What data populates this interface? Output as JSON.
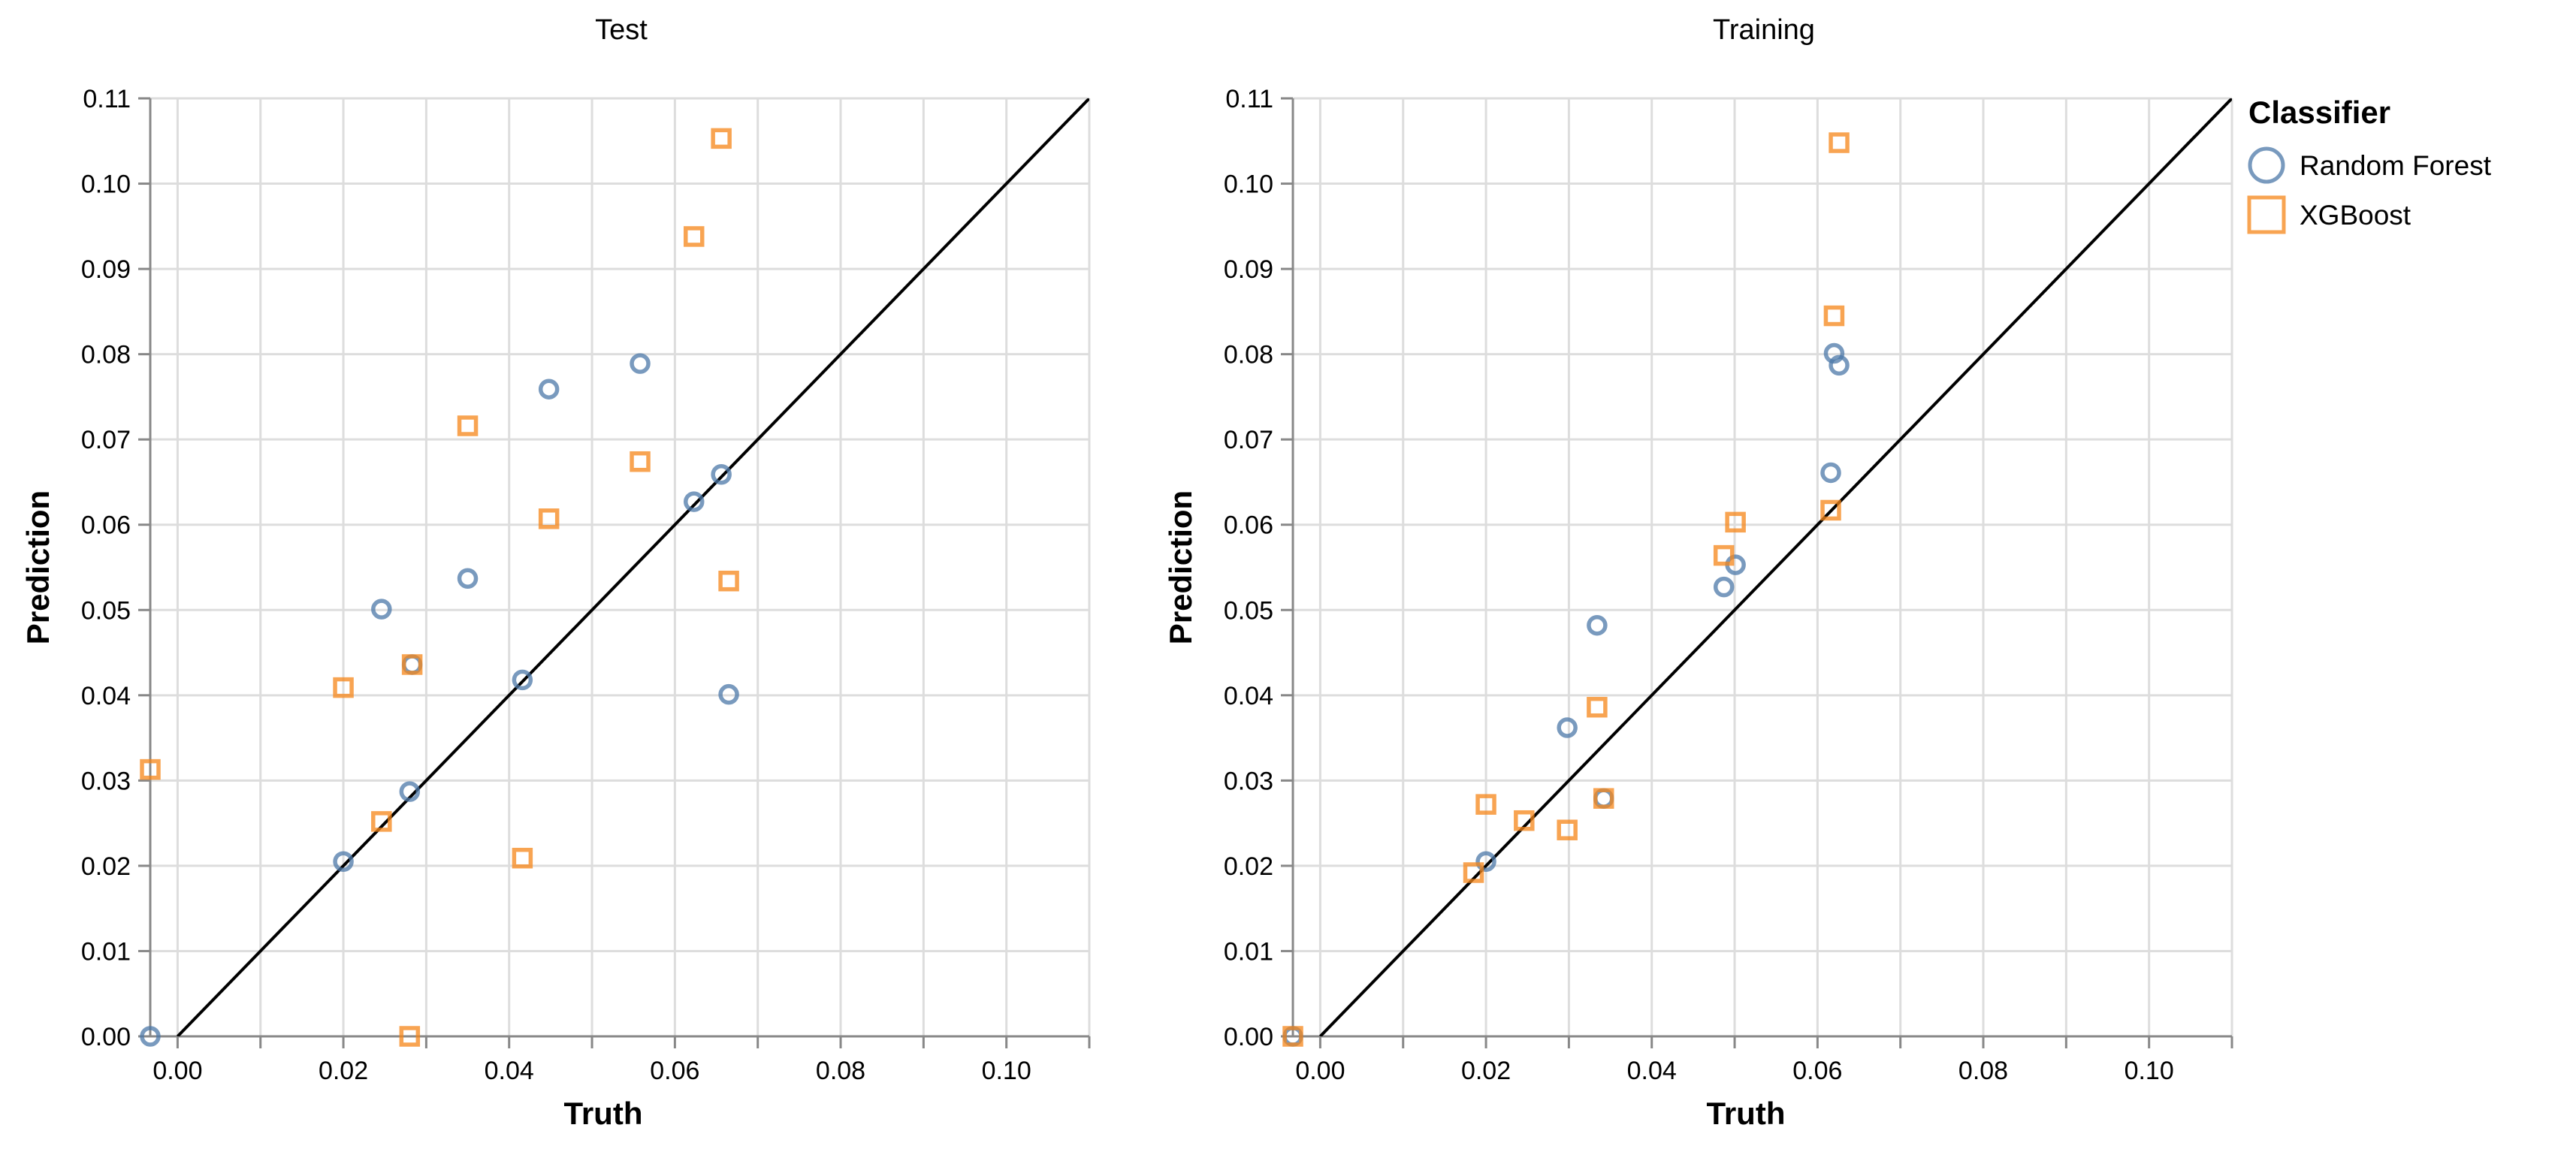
{
  "chart_data": {
    "type": "scatter",
    "legend": {
      "title": "Classifier",
      "placement": "right",
      "entries": [
        {
          "name": "Random Forest",
          "shape": "circle",
          "color": "#4c78a8"
        },
        {
          "name": "XGBoost",
          "shape": "square",
          "color": "#f58518"
        }
      ]
    },
    "panels": [
      {
        "title": "Test",
        "xlabel": "Truth",
        "ylabel": "Prediction",
        "xlim": [
          -0.0033,
          0.11
        ],
        "ylim": [
          0,
          0.11
        ],
        "grid": true,
        "x_ticks": [
          "0.00",
          "0.02",
          "0.04",
          "0.06",
          "0.08",
          "0.10"
        ],
        "y_ticks": [
          "0.00",
          "0.01",
          "0.02",
          "0.03",
          "0.04",
          "0.05",
          "0.06",
          "0.07",
          "0.08",
          "0.09",
          "0.10",
          "0.11"
        ],
        "series": [
          {
            "name": "Random Forest",
            "points": [
              [
                -0.0033,
                0.0
              ],
              [
                0.02,
                0.0205
              ],
              [
                0.028,
                0.0287
              ],
              [
                0.0416,
                0.0418
              ],
              [
                0.0246,
                0.0501
              ],
              [
                0.035,
                0.0537
              ],
              [
                0.0448,
                0.0759
              ],
              [
                0.0558,
                0.0789
              ],
              [
                0.0623,
                0.0627
              ],
              [
                0.0656,
                0.0659
              ],
              [
                0.0665,
                0.0401
              ],
              [
                0.0283,
                0.0436
              ]
            ]
          },
          {
            "name": "XGBoost",
            "points": [
              [
                -0.0033,
                0.0313
              ],
              [
                0.02,
                0.0409
              ],
              [
                0.0283,
                0.0436
              ],
              [
                0.0246,
                0.0252
              ],
              [
                0.028,
                0.0
              ],
              [
                0.0416,
                0.0209
              ],
              [
                0.035,
                0.0716
              ],
              [
                0.0448,
                0.0607
              ],
              [
                0.0558,
                0.0674
              ],
              [
                0.0623,
                0.0938
              ],
              [
                0.0656,
                0.1053
              ],
              [
                0.0665,
                0.0534
              ]
            ]
          }
        ]
      },
      {
        "title": "Training",
        "xlabel": "Truth",
        "ylabel": "Prediction",
        "xlim": [
          -0.0033,
          0.11
        ],
        "ylim": [
          0,
          0.11
        ],
        "grid": true,
        "x_ticks": [
          "0.00",
          "0.02",
          "0.04",
          "0.06",
          "0.08",
          "0.10"
        ],
        "y_ticks": [
          "0.00",
          "0.01",
          "0.02",
          "0.03",
          "0.04",
          "0.05",
          "0.06",
          "0.07",
          "0.08",
          "0.09",
          "0.10",
          "0.11"
        ],
        "series": [
          {
            "name": "Random Forest",
            "points": [
              [
                -0.0033,
                0.0
              ],
              [
                0.02,
                0.0205
              ],
              [
                0.0298,
                0.0362
              ],
              [
                0.0334,
                0.0482
              ],
              [
                0.0342,
                0.0279
              ],
              [
                0.0487,
                0.0527
              ],
              [
                0.0501,
                0.0553
              ],
              [
                0.0616,
                0.0661
              ],
              [
                0.062,
                0.0801
              ],
              [
                0.0626,
                0.0787
              ]
            ]
          },
          {
            "name": "XGBoost",
            "points": [
              [
                -0.0033,
                0.0
              ],
              [
                0.0185,
                0.0192
              ],
              [
                0.02,
                0.0272
              ],
              [
                0.0246,
                0.0253
              ],
              [
                0.0298,
                0.0242
              ],
              [
                0.0334,
                0.0386
              ],
              [
                0.0342,
                0.0279
              ],
              [
                0.0487,
                0.0564
              ],
              [
                0.0501,
                0.0603
              ],
              [
                0.0616,
                0.0617
              ],
              [
                0.062,
                0.0845
              ],
              [
                0.0626,
                0.1048
              ]
            ]
          }
        ]
      }
    ]
  }
}
